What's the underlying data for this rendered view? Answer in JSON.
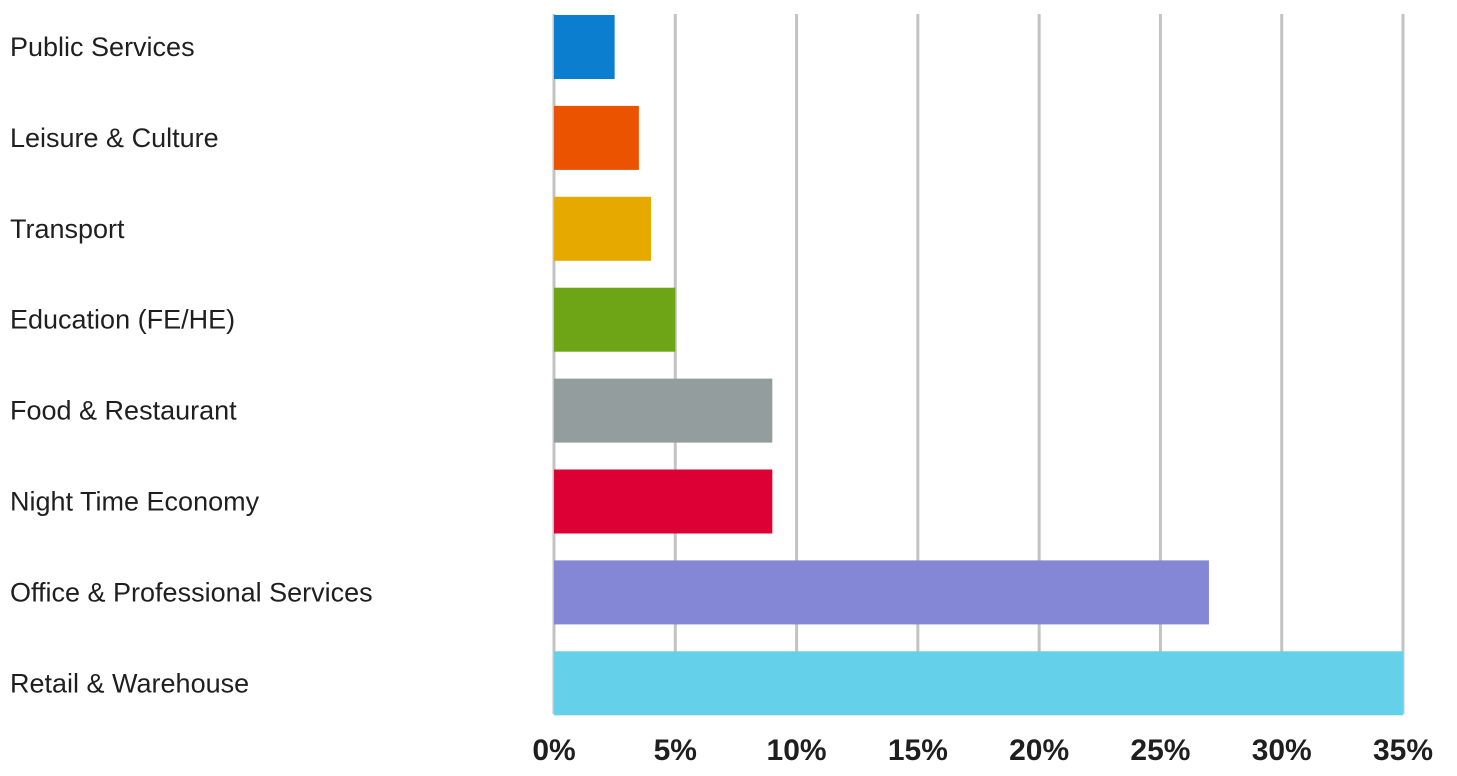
{
  "chart_data": {
    "type": "bar",
    "orientation": "horizontal",
    "title": "",
    "xlabel": "",
    "ylabel": "",
    "xlim": [
      0,
      35
    ],
    "grid": true,
    "legend": "none",
    "ticks": [
      "0%",
      "5%",
      "10%",
      "15%",
      "20%",
      "25%",
      "30%",
      "35%"
    ],
    "tick_values": [
      0,
      5,
      10,
      15,
      20,
      25,
      30,
      35
    ],
    "categories": [
      "Public Services",
      "Leisure & Culture",
      "Transport",
      "Education (FE/HE)",
      "Food & Restaurant",
      "Night Time Economy",
      "Office & Professional Services",
      "Retail & Warehouse"
    ],
    "values": [
      2.5,
      3.5,
      4,
      5,
      9,
      9,
      27,
      35
    ],
    "colors": [
      "#0b7ecf",
      "#ec5300",
      "#e5a900",
      "#6ea517",
      "#939d9e",
      "#dc0034",
      "#8387d6",
      "#64d0ea"
    ]
  }
}
